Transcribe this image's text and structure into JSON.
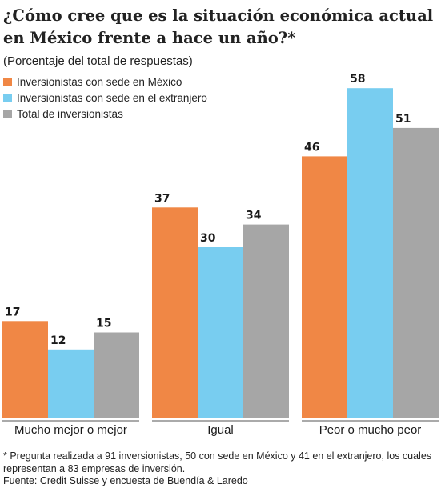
{
  "chart_data": {
    "type": "bar",
    "title": "¿Cómo cree que es la situación económica actual en México frente a hace un año?*",
    "subtitle": "(Porcentaje del total de respuestas)",
    "categories": [
      "Mucho mejor o mejor",
      "Igual",
      "Peor o mucho peor"
    ],
    "series": [
      {
        "name": "Inversionistas con sede en México",
        "values": [
          17,
          37,
          46
        ],
        "color": "#f08745"
      },
      {
        "name": "Inversionistas con sede en el extranjero",
        "values": [
          12,
          30,
          58
        ],
        "color": "#78cdf0"
      },
      {
        "name": "Total de inversionistas",
        "values": [
          15,
          34,
          51
        ],
        "color": "#a6a6a6"
      }
    ],
    "ylim": [
      0,
      60
    ],
    "grid": false,
    "legend_position": "top-left",
    "data_labels": true,
    "footnote": "* Pregunta realizada a 91 inversionistas, 50 con sede en México y 41 en el extranjero, los cuales representan a 83 empresas de inversión.",
    "source": "Fuente: Credit Suisse y encuesta de Buendía & Laredo"
  }
}
